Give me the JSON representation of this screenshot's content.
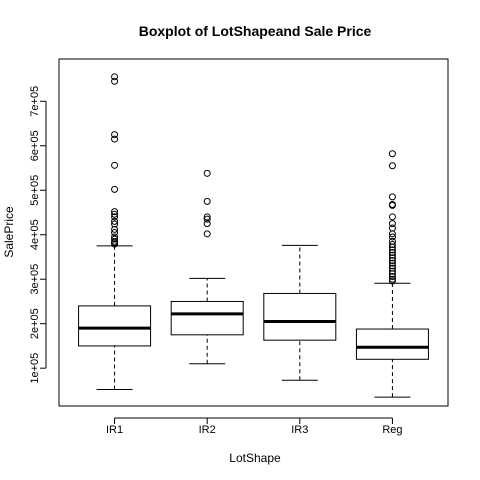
{
  "chart_data": {
    "type": "box",
    "title": "Boxplot of LotShapeand Sale Price",
    "xlabel": "LotShape",
    "ylabel": "SalePrice",
    "ylim": [
      15000,
      795000
    ],
    "yticks": [
      {
        "value": 100000,
        "label": "1e+05"
      },
      {
        "value": 200000,
        "label": "2e+05"
      },
      {
        "value": 300000,
        "label": "3e+05"
      },
      {
        "value": 400000,
        "label": "4e+05"
      },
      {
        "value": 500000,
        "label": "5e+05"
      },
      {
        "value": 600000,
        "label": "6e+05"
      },
      {
        "value": 700000,
        "label": "7e+05"
      }
    ],
    "categories": [
      "IR1",
      "IR2",
      "IR3",
      "Reg"
    ],
    "boxes": [
      {
        "name": "IR1",
        "whisker_low": 52000,
        "q1": 150000,
        "median": 190000,
        "q3": 240000,
        "whisker_high": 375000,
        "outliers": [
          755000,
          745000,
          625000,
          615000,
          556000,
          502000,
          452000,
          446000,
          440000,
          430000,
          424000,
          412000,
          405000,
          395000,
          390000,
          385000,
          382000,
          379000
        ]
      },
      {
        "name": "IR2",
        "whisker_low": 110000,
        "q1": 175000,
        "median": 222000,
        "q3": 250000,
        "whisker_high": 302000,
        "outliers": [
          538000,
          475000,
          440000,
          435000,
          425000,
          402000
        ]
      },
      {
        "name": "IR3",
        "whisker_low": 73000,
        "q1": 163000,
        "median": 205000,
        "q3": 268000,
        "whisker_high": 376000,
        "outliers": []
      },
      {
        "name": "Reg",
        "whisker_low": 35000,
        "q1": 120000,
        "median": 147000,
        "q3": 188000,
        "whisker_high": 291000,
        "outliers": [
          582000,
          555000,
          485000,
          468000,
          466000,
          440000,
          425000,
          415000,
          402000,
          395000,
          385000,
          378000,
          372000,
          366000,
          360000,
          354000,
          348000,
          342000,
          336000,
          330000,
          325000,
          318000,
          312000,
          306000,
          300000,
          296000
        ]
      }
    ]
  }
}
